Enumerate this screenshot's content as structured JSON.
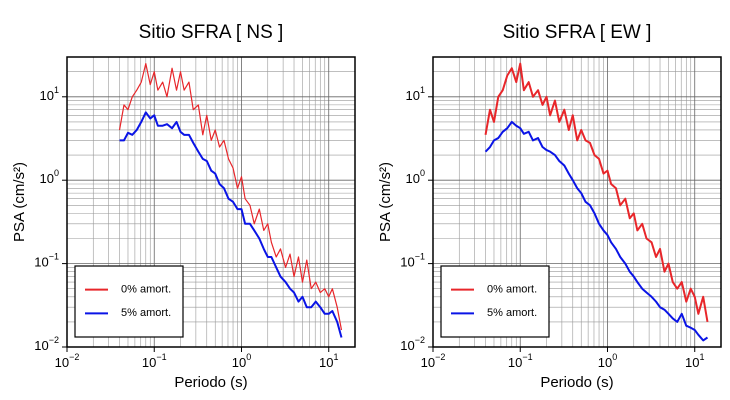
{
  "chart_data": [
    {
      "type": "line",
      "title": "Sitio SFRA [ NS ]",
      "x_label": "Periodo (s)",
      "y_label": "PSA (cm/s²)",
      "log_x": true,
      "log_y": true,
      "grid": true,
      "legend": "lower left",
      "xlim": [
        0.01,
        20
      ],
      "ylim": [
        0.01,
        30
      ],
      "xticks": [
        {
          "value": 0.01,
          "label": "10",
          "exponent": "−2"
        },
        {
          "value": 0.1,
          "label": "10",
          "exponent": "−1"
        },
        {
          "value": 1,
          "label": "10",
          "exponent": "0"
        },
        {
          "value": 10,
          "label": "10",
          "exponent": "1"
        }
      ],
      "yticks": [
        {
          "value": 0.01,
          "label": "10",
          "exponent": "−2"
        },
        {
          "value": 0.1,
          "label": "10",
          "exponent": "−1"
        },
        {
          "value": 1,
          "label": "10",
          "exponent": "0"
        },
        {
          "value": 10,
          "label": "10",
          "exponent": "1"
        }
      ],
      "x": [
        0.04,
        0.045,
        0.05,
        0.056,
        0.063,
        0.071,
        0.08,
        0.09,
        0.1,
        0.11,
        0.125,
        0.14,
        0.16,
        0.18,
        0.2,
        0.22,
        0.25,
        0.28,
        0.32,
        0.36,
        0.4,
        0.45,
        0.5,
        0.56,
        0.63,
        0.71,
        0.8,
        0.9,
        1,
        1.1,
        1.25,
        1.4,
        1.6,
        1.8,
        2,
        2.2,
        2.5,
        2.8,
        3.2,
        3.6,
        4,
        4.5,
        5,
        5.6,
        6.3,
        7.1,
        8,
        9,
        10,
        11,
        12.5,
        14
      ],
      "series": [
        {
          "name": "0% amort.",
          "color": "#e8262a",
          "width": 1.2,
          "values": [
            4,
            8,
            7,
            10,
            12,
            15,
            25,
            14,
            20,
            12,
            15,
            10,
            22,
            12,
            20,
            12,
            15,
            7,
            8,
            3.5,
            6,
            3,
            4,
            2.5,
            3,
            1.8,
            1.4,
            0.8,
            1.1,
            0.6,
            0.5,
            0.3,
            0.45,
            0.25,
            0.3,
            0.18,
            0.12,
            0.15,
            0.09,
            0.13,
            0.07,
            0.12,
            0.06,
            0.11,
            0.05,
            0.06,
            0.045,
            0.05,
            0.04,
            0.05,
            0.03,
            0.016
          ]
        },
        {
          "name": "5% amort.",
          "color": "#0a14e6",
          "width": 2,
          "values": [
            3,
            3,
            3.7,
            3.5,
            4,
            5,
            6.5,
            5.5,
            6,
            4.5,
            4.5,
            4.7,
            4.2,
            5,
            3.8,
            3.5,
            3.5,
            2.8,
            2.2,
            1.8,
            1.7,
            1.3,
            1.2,
            0.9,
            0.8,
            0.6,
            0.55,
            0.45,
            0.45,
            0.3,
            0.3,
            0.25,
            0.2,
            0.15,
            0.12,
            0.12,
            0.09,
            0.07,
            0.06,
            0.05,
            0.045,
            0.035,
            0.04,
            0.03,
            0.03,
            0.035,
            0.03,
            0.025,
            0.025,
            0.027,
            0.02,
            0.013
          ]
        }
      ]
    },
    {
      "type": "line",
      "title": "Sitio SFRA [ EW ]",
      "x_label": "Periodo (s)",
      "y_label": "PSA (cm/s²)",
      "log_x": true,
      "log_y": true,
      "grid": true,
      "legend": "lower left",
      "xlim": [
        0.01,
        20
      ],
      "ylim": [
        0.01,
        30
      ],
      "xticks": [
        {
          "value": 0.01,
          "label": "10",
          "exponent": "−2"
        },
        {
          "value": 0.1,
          "label": "10",
          "exponent": "−1"
        },
        {
          "value": 1,
          "label": "10",
          "exponent": "0"
        },
        {
          "value": 10,
          "label": "10",
          "exponent": "1"
        }
      ],
      "yticks": [
        {
          "value": 0.01,
          "label": "10",
          "exponent": "−2"
        },
        {
          "value": 0.1,
          "label": "10",
          "exponent": "−1"
        },
        {
          "value": 1,
          "label": "10",
          "exponent": "0"
        },
        {
          "value": 10,
          "label": "10",
          "exponent": "1"
        }
      ],
      "x": [
        0.04,
        0.045,
        0.05,
        0.056,
        0.063,
        0.071,
        0.08,
        0.09,
        0.1,
        0.11,
        0.125,
        0.14,
        0.16,
        0.18,
        0.2,
        0.22,
        0.25,
        0.28,
        0.32,
        0.36,
        0.4,
        0.45,
        0.5,
        0.56,
        0.63,
        0.71,
        0.8,
        0.9,
        1,
        1.1,
        1.25,
        1.4,
        1.6,
        1.8,
        2,
        2.2,
        2.5,
        2.8,
        3.2,
        3.6,
        4,
        4.5,
        5,
        5.6,
        6.3,
        7.1,
        8,
        9,
        10,
        11,
        12.5,
        14
      ],
      "series": [
        {
          "name": "0% amort.",
          "color": "#e8262a",
          "width": 2,
          "values": [
            3.5,
            7,
            5,
            10,
            12,
            18,
            22,
            15,
            25,
            12,
            15,
            10,
            12,
            8,
            10,
            6,
            9,
            5,
            7,
            4,
            6,
            3,
            4,
            3,
            2.8,
            2,
            1.8,
            1.2,
            1.3,
            0.9,
            0.8,
            0.5,
            0.6,
            0.35,
            0.4,
            0.25,
            0.3,
            0.2,
            0.18,
            0.12,
            0.15,
            0.08,
            0.1,
            0.06,
            0.05,
            0.06,
            0.035,
            0.05,
            0.04,
            0.025,
            0.04,
            0.02
          ]
        },
        {
          "name": "5% amort.",
          "color": "#0a14e6",
          "width": 2,
          "values": [
            2.2,
            2.5,
            3,
            3.2,
            3.8,
            4.2,
            5,
            4.5,
            4.2,
            3.6,
            3.8,
            3,
            3.2,
            2.5,
            2.3,
            2.2,
            2,
            1.7,
            1.5,
            1.2,
            1,
            0.8,
            0.7,
            0.55,
            0.5,
            0.4,
            0.3,
            0.25,
            0.22,
            0.18,
            0.15,
            0.12,
            0.1,
            0.08,
            0.07,
            0.06,
            0.05,
            0.045,
            0.04,
            0.035,
            0.03,
            0.028,
            0.025,
            0.022,
            0.02,
            0.025,
            0.018,
            0.017,
            0.016,
            0.014,
            0.012,
            0.013
          ]
        }
      ]
    }
  ]
}
